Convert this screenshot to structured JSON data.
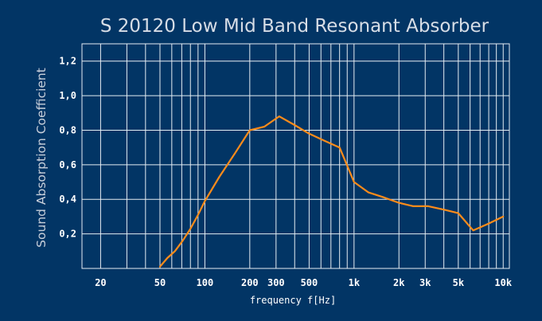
{
  "chart_data": {
    "type": "line",
    "title": "S 20120 Low Mid Band Resonant Absorber",
    "xlabel": "frequency f[Hz]",
    "ylabel": "Sound Absorption Coefficient",
    "xscale": "log",
    "xlim": [
      15,
      11000
    ],
    "ylim": [
      0,
      1.3
    ],
    "grid": true,
    "x_tick_values": [
      20,
      50,
      100,
      200,
      300,
      500,
      1000,
      2000,
      3000,
      5000,
      10000
    ],
    "x_tick_labels": [
      "20",
      "50",
      "100",
      "200",
      "300",
      "500",
      "1k",
      "2k",
      "3k",
      "5k",
      "10k"
    ],
    "y_tick_values": [
      0.2,
      0.4,
      0.6,
      0.8,
      1.0,
      1.2
    ],
    "y_tick_labels": [
      "0,2",
      "0,4",
      "0,6",
      "0,8",
      "1,0",
      "1,2"
    ],
    "series": [
      {
        "color": "#ff8c1a",
        "x": [
          50,
          56,
          63,
          71,
          80,
          90,
          100,
          125,
          160,
          200,
          250,
          315,
          400,
          500,
          630,
          800,
          1000,
          1250,
          1600,
          2000,
          2500,
          3150,
          4000,
          5000,
          6300,
          8000,
          10000
        ],
        "y": [
          0.01,
          0.06,
          0.1,
          0.16,
          0.23,
          0.31,
          0.39,
          0.53,
          0.67,
          0.8,
          0.82,
          0.88,
          0.83,
          0.78,
          0.74,
          0.7,
          0.5,
          0.44,
          0.41,
          0.38,
          0.36,
          0.36,
          0.34,
          0.32,
          0.22,
          0.26,
          0.3
        ]
      }
    ]
  },
  "colors": {
    "background": "#023565",
    "grid": "#e6ecf2",
    "series": "#ff8c1a",
    "text": "#ffffff",
    "title": "#d7dde6",
    "ylabel": "#c8cfda"
  }
}
